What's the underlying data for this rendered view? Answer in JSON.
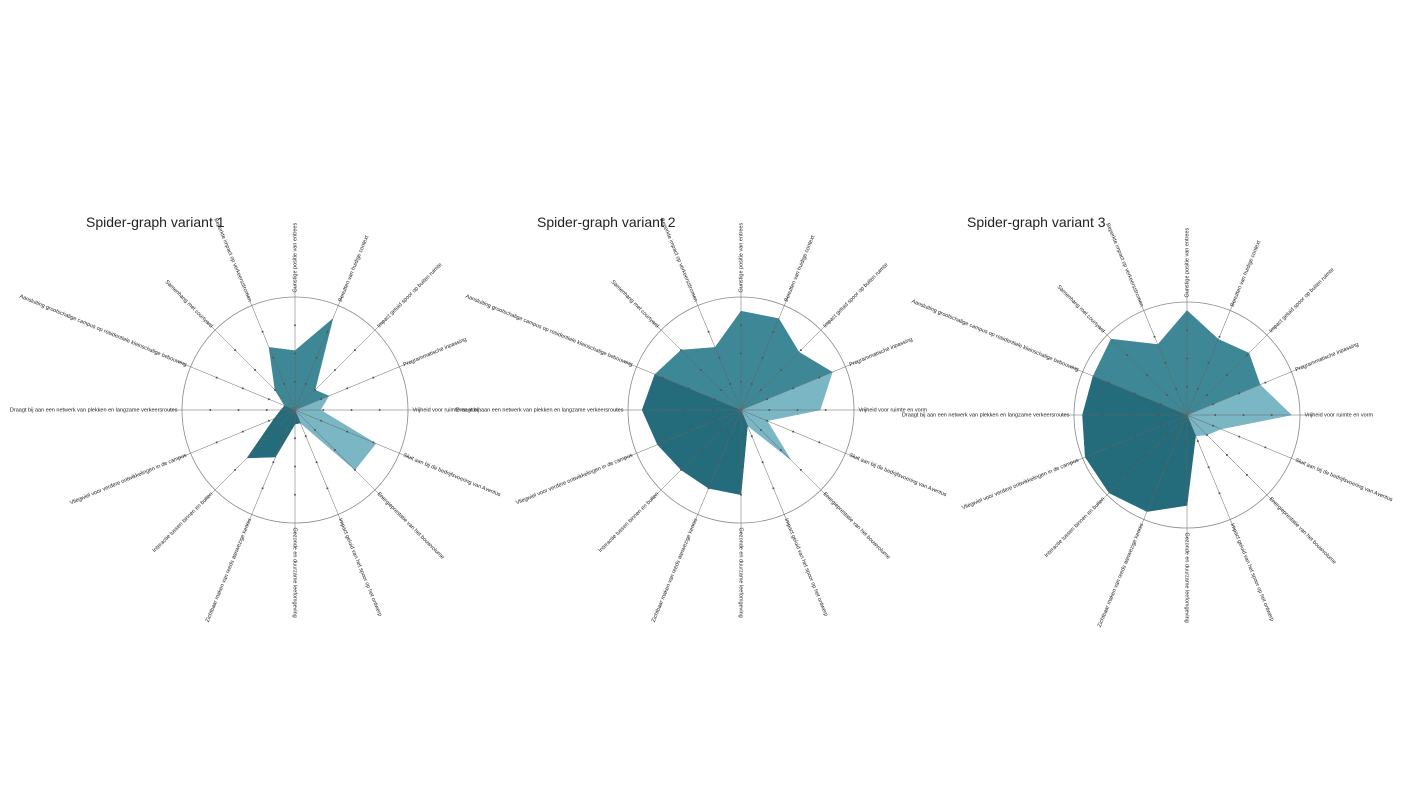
{
  "chart_data": [
    {
      "type": "radar",
      "title": "Spider-graph variant 1",
      "categories": [
        "Gunstige positie van entrees",
        "Benutten van huidige context",
        "Impact geluid spoor op buiten ruimte",
        "Programmatische inpassing",
        "Vrijheid voor ruimte en vorm",
        "Sluit aan bij de bedrijfsvoering van Aventus",
        "Energieprestatie van het bouwvolume",
        "Impact geluid van het spoor op het ontwerp",
        "Gezonde en duurzame leefomgeving",
        "Zichtbaar maken van reeds aanwezige kennis",
        "Interactie tussen binnen en buiten",
        "Vliegwiel voor verdere ontwikkelingen in de campus",
        "Draagt bij aan een netwerk van plekken en langzame verkeersroutes",
        "Aansluiting grootschalige campus op residentiele kleinschalige bebouwing",
        "Samenhang met courtyard",
        "Beperkte impact op verkeersstromen"
      ],
      "values": [
        2.1,
        3.5,
        1,
        1.3,
        0.9,
        3.1,
        3,
        0.5,
        0.5,
        1.8,
        2.4,
        0.8,
        0.5,
        0.4,
        1,
        2.4
      ],
      "colors": [
        "#3d8797",
        "#3d8797",
        "#3d8797",
        "#7ab6c3",
        "#7ab6c3",
        "#7ab6c3",
        "#7ab6c3",
        "#246b7c",
        "#246b7c",
        "#246b7c",
        "#246b7c",
        "#246b7c",
        "#246b7c",
        "#3d8797",
        "#3d8797",
        "#3d8797"
      ],
      "rlim": [
        0,
        4
      ],
      "rticks": [
        1,
        2,
        3,
        4
      ]
    },
    {
      "type": "radar",
      "title": "Spider-graph variant 2",
      "categories": [
        "Gunstige positie van entrees",
        "Benutten van huidige context",
        "Impact geluid spoor op buiten ruimte",
        "Programmatische inpassing",
        "Vrijheid voor ruimte en vorm",
        "Sluit aan bij de bedrijfsvoering van Aventus",
        "Energieprestatie van het bouwvolume",
        "Impact geluid van het spoor op het ontwerp",
        "Gezonde en duurzame leefomgeving",
        "Zichtbaar maken van reeds aanwezige kennis",
        "Interactie tussen binnen en buiten",
        "Vliegwiel voor verdere ontwikkelingen in de campus",
        "Draagt bij aan een netwerk van plekken en langzame verkeersroutes",
        "Aansluiting grootschalige campus op residentiele kleinschalige bebouwing",
        "Samenhang met courtyard",
        "Beperkte impact op verkeersstromen"
      ],
      "values": [
        3.5,
        3.5,
        2.9,
        3.5,
        2.8,
        1,
        2.5,
        0.6,
        3,
        3,
        3,
        3.2,
        3.5,
        3.3,
        3,
        2.4
      ],
      "colors": [
        "#3d8797",
        "#3d8797",
        "#3d8797",
        "#7ab6c3",
        "#7ab6c3",
        "#7ab6c3",
        "#7ab6c3",
        "#246b7c",
        "#246b7c",
        "#246b7c",
        "#246b7c",
        "#246b7c",
        "#246b7c",
        "#3d8797",
        "#3d8797",
        "#3d8797"
      ],
      "rlim": [
        0,
        4
      ],
      "rticks": [
        1,
        2,
        3,
        4
      ]
    },
    {
      "type": "radar",
      "title": "Spider-graph variant 3",
      "categories": [
        "Gunstige positie van entrees",
        "Benutten van huidige context",
        "Impact geluid spoor op buiten ruimte",
        "Programmatische inpassing",
        "Vrijheid voor ruimte en vorm",
        "Sluit aan bij de bedrijfsvoering van Aventus",
        "Energieprestatie van het bouwvolume",
        "Impact geluid van het spoor op het ontwerp",
        "Gezonde en duurzame leefomgeving",
        "Zichtbaar maken van reeds aanwezige kennis",
        "Interactie tussen binnen en buiten",
        "Vliegwiel voor verdere ontwikkelingen in de campus",
        "Draagt bij aan een netwerk van plekken en langzame verkeersroutes",
        "Aansluiting grootschalige campus op residentiele kleinschalige bebouwing",
        "Samenhang met courtyard",
        "Beperkte impact op verkeersstromen"
      ],
      "values": [
        3.7,
        2.9,
        3.1,
        2.8,
        3.7,
        1.3,
        1,
        0.8,
        3.2,
        3.7,
        3.9,
        3.9,
        3.7,
        3.6,
        3.8,
        2.7
      ],
      "colors": [
        "#3d8797",
        "#3d8797",
        "#3d8797",
        "#7ab6c3",
        "#7ab6c3",
        "#7ab6c3",
        "#7ab6c3",
        "#246b7c",
        "#246b7c",
        "#246b7c",
        "#246b7c",
        "#246b7c",
        "#246b7c",
        "#3d8797",
        "#3d8797",
        "#3d8797"
      ],
      "rlim": [
        0,
        4
      ],
      "rticks": [
        1,
        2,
        3,
        4
      ]
    }
  ]
}
